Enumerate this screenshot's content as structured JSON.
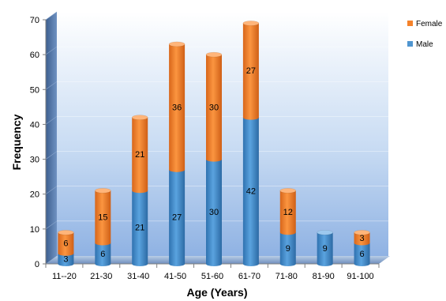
{
  "chart_data": {
    "type": "bar",
    "stacked": true,
    "style": "3d-cylinder",
    "title": "",
    "xlabel": "Age (Years)",
    "ylabel": "Frequency",
    "ylim": [
      0,
      70
    ],
    "yticks": [
      0,
      10,
      20,
      30,
      40,
      50,
      60,
      70
    ],
    "categories": [
      "11--20",
      "21-30",
      "31-40",
      "41-50",
      "51-60",
      "61-70",
      "71-80",
      "81-90",
      "91-100"
    ],
    "series": [
      {
        "name": "Male",
        "color": "#4f95d0",
        "values": [
          3,
          6,
          21,
          27,
          30,
          42,
          9,
          9,
          6
        ]
      },
      {
        "name": "Female",
        "color": "#f5822a",
        "values": [
          6,
          15,
          21,
          36,
          30,
          27,
          12,
          0,
          3
        ]
      }
    ],
    "legend_position": "right",
    "legend_order": [
      "Female",
      "Male"
    ]
  }
}
